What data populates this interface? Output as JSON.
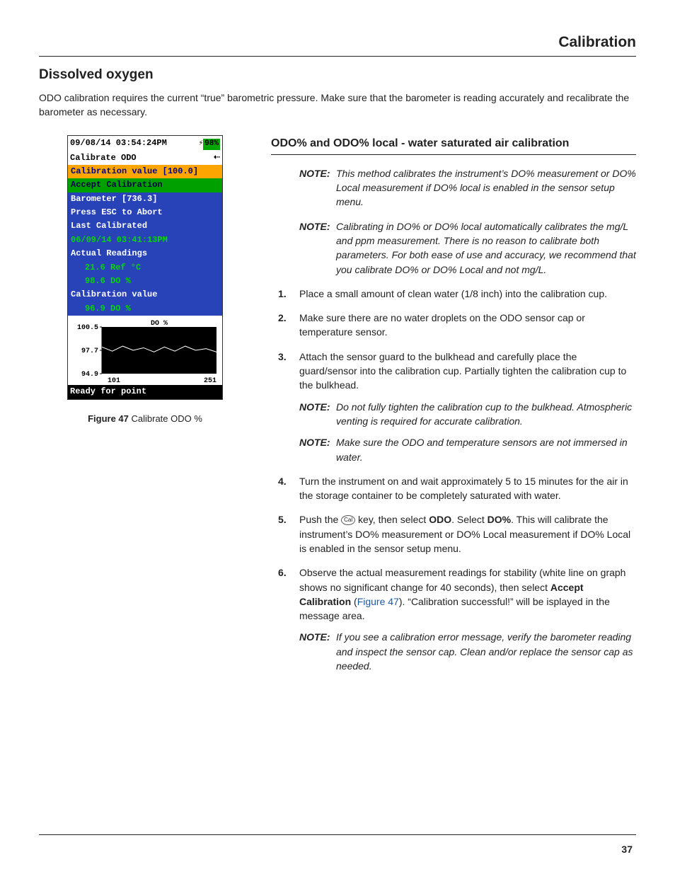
{
  "header": {
    "title": "Calibration"
  },
  "section_title": "Dissolved oxygen",
  "intro": "ODO calibration requires the current “true” barometric pressure.  Make sure that the barometer is reading accurately and recalibrate the barometer as necessary.",
  "figure": {
    "caption_label": "Figure 47",
    "caption_text": "  Calibrate ODO %",
    "device": {
      "datetime": "09/08/14 03:54:24PM",
      "battery_pct": "98%",
      "title": "Calibrate ODO",
      "rows": {
        "cal_value": "Calibration value [100.0]",
        "accept": "Accept Calibration",
        "barometer": "Barometer [736.3]",
        "esc": "Press ESC to Abort",
        "last_cal_label": "Last Calibrated",
        "last_cal_value": "06/09/14 03:41:13PM",
        "actual_label": "Actual Readings",
        "actual_1": "21.6 Ref °C",
        "actual_2": "98.6 DO %",
        "calval_label": "Calibration value",
        "calval_1": "96.9 DO %"
      },
      "chart": {
        "title": "DO %",
        "y_ticks": [
          "100.5",
          "97.7",
          "94.9"
        ],
        "x_ticks": [
          "101",
          "251"
        ],
        "line_y_values": [
          98.1,
          97.6,
          98.2,
          97.7,
          98.0,
          97.5,
          98.1,
          97.6,
          98.2,
          97.7,
          97.9,
          97.5
        ],
        "y_min": 94.9,
        "y_max": 100.5,
        "line_color": "#ffffff",
        "plot_bg": "#000000",
        "axis_color": "#000000",
        "label_fontsize": 10
      },
      "footer": "Ready for point"
    }
  },
  "subhead": "ODO% and ODO% local - water saturated air calibration",
  "note1": "This method calibrates the instrument’s DO% measurement or DO% Local measurement if DO% local is enabled in the sensor setup menu.",
  "note2": "Calibrating in DO% or DO% local automatically calibrates the mg/L and ppm measurement. There is no reason to calibrate both parameters. For both ease of use and accuracy, we recommend that you calibrate DO% or DO% Local and not mg/L.",
  "note_label": "NOTE:",
  "steps": {
    "s1": "Place a small amount of clean water (1/8 inch) into the calibration cup.",
    "s2": "Make sure there are no water droplets on the ODO sensor cap or temperature sensor.",
    "s3": "Attach the sensor guard to the bulkhead and carefully place the guard/sensor into the calibration cup. Partially tighten the calibration cup to the bulkhead.",
    "s3_note_a": "Do not fully tighten the calibration cup to the bulkhead. Atmospheric venting is required for accurate calibration.",
    "s3_note_b": "Make sure the ODO and temperature sensors are not immersed in water.",
    "s4": "Turn the instrument on and wait approximately 5 to 15 minutes for the air in the storage container to be completely saturated with water.",
    "s5_a": "Push the ",
    "s5_key": "Cal",
    "s5_b": " key, then select ",
    "s5_odo": "ODO",
    "s5_c": ". Select ",
    "s5_dopct": "DO%",
    "s5_d": ". This will calibrate the instrument’s DO% measurement or DO% Local measurement if DO% Local is enabled in the sensor setup menu.",
    "s6_a": "Observe the actual measurement readings for stability (white line on graph shows no significant change for 40 seconds), then select ",
    "s6_accept": "Accept Calibration",
    "s6_b": " (",
    "s6_figref": "Figure 47",
    "s6_c": "). “Calibration successful!” will be isplayed in the message area.",
    "s6_note": "If you see a calibration error message, verify the barometer reading and inspect the sensor cap. Clean and/or replace the sensor cap as needed."
  },
  "page_number": "37"
}
